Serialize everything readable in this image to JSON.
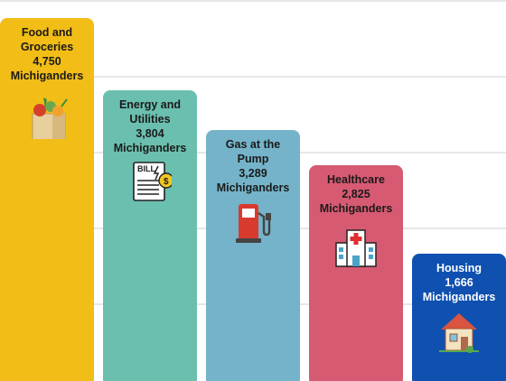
{
  "chart_data": {
    "type": "bar",
    "categories": [
      "Food and Groceries",
      "Energy and Utilities",
      "Gas at the Pump",
      "Healthcare",
      "Housing"
    ],
    "values": [
      4750,
      3804,
      3289,
      2825,
      1666
    ],
    "value_labels": [
      "4,750",
      "3,804",
      "3,289",
      "2,825",
      "1,666"
    ],
    "unit_label": "Michiganders",
    "colors": [
      "#f2bd16",
      "#6bbfae",
      "#74b3c9",
      "#d65a72",
      "#0f50b0"
    ],
    "text_colors": [
      "#1a1a1a",
      "#1a1a1a",
      "#1a1a1a",
      "#1a1a1a",
      "#ffffff"
    ],
    "icons": [
      "grocery-bag-icon",
      "bill-icon",
      "gas-pump-icon",
      "hospital-icon",
      "house-icon"
    ],
    "ylim": [
      0,
      5000
    ],
    "grid": true,
    "title": "",
    "xlabel": "",
    "ylabel": ""
  }
}
